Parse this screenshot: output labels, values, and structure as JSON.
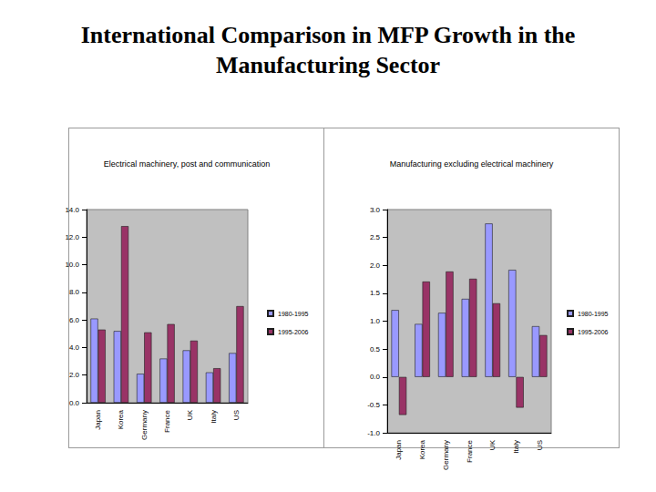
{
  "title": "International Comparison in MFP Growth in the Manufacturing Sector",
  "chart_data": [
    {
      "type": "bar",
      "title": "Electrical machinery, post and communication",
      "categories": [
        "Japan",
        "Korea",
        "Germany",
        "France",
        "UK",
        "Italy",
        "US"
      ],
      "series": [
        {
          "name": "1980-1995",
          "color": "#9999ff",
          "values": [
            6.1,
            5.2,
            2.1,
            3.2,
            3.8,
            2.2,
            3.6
          ]
        },
        {
          "name": "1995-2006",
          "color": "#993366",
          "values": [
            5.3,
            12.8,
            5.1,
            5.7,
            4.5,
            2.5,
            7.0
          ]
        }
      ],
      "ylim": [
        0,
        14
      ],
      "yticks": [
        {
          "value": 0,
          "label": "0.0"
        },
        {
          "value": 2,
          "label": "2.0"
        },
        {
          "value": 4,
          "label": "4.0"
        },
        {
          "value": 6,
          "label": "6.0"
        },
        {
          "value": 8,
          "label": "8.0"
        },
        {
          "value": 10,
          "label": "10.0"
        },
        {
          "value": 12,
          "label": "12.0"
        },
        {
          "value": 14,
          "label": "14.0"
        }
      ],
      "grid": false,
      "legend": "right"
    },
    {
      "type": "bar",
      "title": "Manufacturing excluding electrical machinery",
      "categories": [
        "Japan",
        "Korea",
        "Germany",
        "France",
        "UK",
        "Italy",
        "US"
      ],
      "series": [
        {
          "name": "1980-1995",
          "color": "#9999ff",
          "values": [
            1.2,
            0.95,
            1.15,
            1.4,
            2.75,
            1.92,
            0.91
          ]
        },
        {
          "name": "1995-2006",
          "color": "#993366",
          "values": [
            -0.68,
            1.71,
            1.89,
            1.76,
            1.32,
            -0.55,
            0.75
          ]
        }
      ],
      "ylim": [
        -1,
        3
      ],
      "yticks": [
        {
          "value": -1,
          "label": "-1.0"
        },
        {
          "value": -0.5,
          "label": "-0.5"
        },
        {
          "value": 0,
          "label": "0.0"
        },
        {
          "value": 0.5,
          "label": "0.5"
        },
        {
          "value": 1,
          "label": "1.0"
        },
        {
          "value": 1.5,
          "label": "1.5"
        },
        {
          "value": 2,
          "label": "2.0"
        },
        {
          "value": 2.5,
          "label": "2.5"
        },
        {
          "value": 3,
          "label": "3.0"
        }
      ],
      "grid": false,
      "legend": "right"
    }
  ]
}
